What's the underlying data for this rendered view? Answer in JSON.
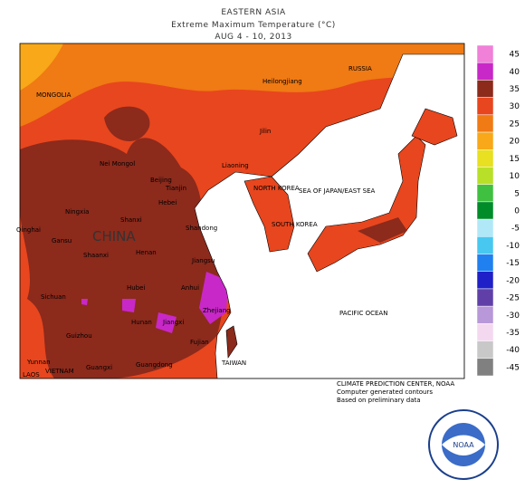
{
  "header": {
    "region": "EASTERN ASIA",
    "title": "Extreme Maximum Temperature (°C)",
    "dates": "AUG 4 - 10, 2013"
  },
  "legend": {
    "items": [
      {
        "value": 45,
        "color": "#f080d8"
      },
      {
        "value": 40,
        "color": "#c828c8"
      },
      {
        "value": 35,
        "color": "#8c2a1c"
      },
      {
        "value": 30,
        "color": "#e8461e"
      },
      {
        "value": 25,
        "color": "#f07a14"
      },
      {
        "value": 20,
        "color": "#f8a818"
      },
      {
        "value": 15,
        "color": "#e8e020"
      },
      {
        "value": 10,
        "color": "#b8e028"
      },
      {
        "value": 5,
        "color": "#40c040"
      },
      {
        "value": 0,
        "color": "#008c28"
      },
      {
        "value": -5,
        "color": "#b0e8f8"
      },
      {
        "value": -10,
        "color": "#48c8f0"
      },
      {
        "value": -15,
        "color": "#2080f0"
      },
      {
        "value": -20,
        "color": "#2020c8"
      },
      {
        "value": -25,
        "color": "#6040a8"
      },
      {
        "value": -30,
        "color": "#b898d8"
      },
      {
        "value": -35,
        "color": "#f4d8f0"
      },
      {
        "value": -40,
        "color": "#c8c8c8"
      },
      {
        "value": -45,
        "color": "#808080"
      }
    ]
  },
  "labels": [
    "MONGOLIA",
    "RUSSIA",
    "Heilongjiang",
    "Jilin",
    "Nei Mongol",
    "Liaoning",
    "Beijing",
    "Tianjin",
    "NORTH KOREA",
    "SEA OF JAPAN/EAST SEA",
    "Hebei",
    "Ningxia",
    "Shanxi",
    "Shandong",
    "SOUTH KOREA",
    "Qinghai",
    "Gansu",
    "CHINA",
    "Henan",
    "Shaanxi",
    "Jiangsu",
    "Anhui",
    "Sichuan",
    "Hubei",
    "Zhejiang",
    "Jiangxi",
    "Hunan",
    "PACIFIC OCEAN",
    "Guizhou",
    "Fujian",
    "Yunnan",
    "Guangxi",
    "Guangdong",
    "TAIWAN",
    "VIETNAM",
    "LAOS"
  ],
  "footer": [
    "CLIMATE PREDICTION CENTER, NOAA",
    "Computer generated contours",
    "Based on preliminary data"
  ],
  "logo": "NOAA"
}
